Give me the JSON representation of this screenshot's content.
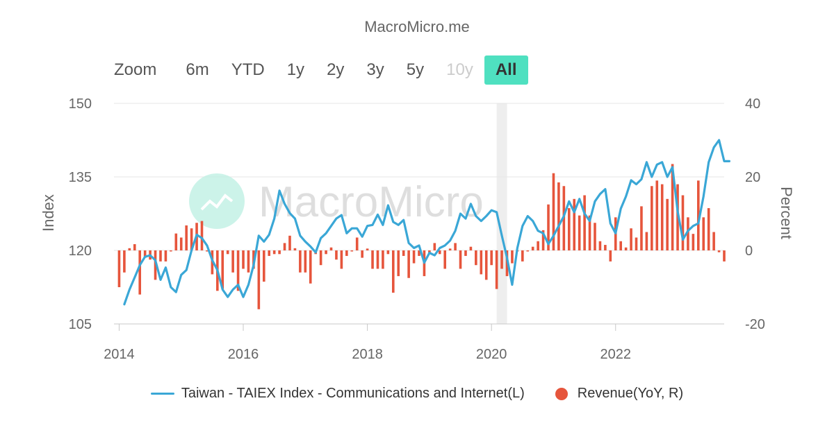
{
  "header": {
    "title": "MacroMicro.me"
  },
  "zoom": {
    "label": "Zoom",
    "buttons": [
      {
        "label": "6m",
        "state": "normal"
      },
      {
        "label": "YTD",
        "state": "normal"
      },
      {
        "label": "1y",
        "state": "normal"
      },
      {
        "label": "2y",
        "state": "normal"
      },
      {
        "label": "3y",
        "state": "normal"
      },
      {
        "label": "5y",
        "state": "normal"
      },
      {
        "label": "10y",
        "state": "disabled"
      },
      {
        "label": "All",
        "state": "active"
      }
    ]
  },
  "watermark": {
    "text": "MacroMicro"
  },
  "colors": {
    "line": "#3aa7d6",
    "bars": "#e6553c",
    "active_button": "#4fe0c0",
    "shade": "#eeeeee"
  },
  "chart_data": {
    "type": "line+bar",
    "x_range": [
      "2013-12",
      "2023-10"
    ],
    "x_ticks": [
      "2014",
      "2016",
      "2018",
      "2020",
      "2022"
    ],
    "left_axis": {
      "label": "Index",
      "min": 105,
      "max": 150,
      "ticks": [
        105,
        120,
        135,
        150
      ]
    },
    "right_axis": {
      "label": "Percent",
      "min": -20,
      "max": 40,
      "ticks": [
        -20,
        0,
        20,
        40
      ]
    },
    "shaded_period": [
      "2020-02",
      "2020-04"
    ],
    "legend_position": "bottom",
    "legend": [
      "Taiwan - TAIEX Index - Communications and Internet(L)",
      "Revenue(YoY, R)"
    ],
    "line_series": {
      "name": "Taiwan - TAIEX Index - Communications and Internet(L)",
      "axis": "left",
      "points": [
        [
          "2014-02",
          109
        ],
        [
          "2014-03",
          112
        ],
        [
          "2014-04",
          114.5
        ],
        [
          "2014-05",
          117
        ],
        [
          "2014-06",
          118.7
        ],
        [
          "2014-07",
          119
        ],
        [
          "2014-08",
          118
        ],
        [
          "2014-09",
          114
        ],
        [
          "2014-10",
          116.5
        ],
        [
          "2014-11",
          112.5
        ],
        [
          "2014-12",
          111.5
        ],
        [
          "2015-01",
          115
        ],
        [
          "2015-02",
          116
        ],
        [
          "2015-03",
          120
        ],
        [
          "2015-04",
          123.2
        ],
        [
          "2015-05",
          122.5
        ],
        [
          "2015-06",
          121
        ],
        [
          "2015-07",
          118
        ],
        [
          "2015-08",
          116
        ],
        [
          "2015-09",
          112
        ],
        [
          "2015-10",
          110.5
        ],
        [
          "2015-11",
          112
        ],
        [
          "2015-12",
          113
        ],
        [
          "2016-01",
          110.5
        ],
        [
          "2016-02",
          113
        ],
        [
          "2016-03",
          117
        ],
        [
          "2016-04",
          123
        ],
        [
          "2016-05",
          121.8
        ],
        [
          "2016-06",
          123.2
        ],
        [
          "2016-07",
          126.5
        ],
        [
          "2016-08",
          132.2
        ],
        [
          "2016-09",
          129.5
        ],
        [
          "2016-10",
          127.6
        ],
        [
          "2016-11",
          126.5
        ],
        [
          "2016-12",
          123
        ],
        [
          "2017-01",
          121.8
        ],
        [
          "2017-02",
          120.8
        ],
        [
          "2017-03",
          119.6
        ],
        [
          "2017-04",
          122.5
        ],
        [
          "2017-05",
          123.5
        ],
        [
          "2017-06",
          125
        ],
        [
          "2017-07",
          126.5
        ],
        [
          "2017-08",
          127.2
        ],
        [
          "2017-09",
          123.5
        ],
        [
          "2017-10",
          124.5
        ],
        [
          "2017-11",
          124.5
        ],
        [
          "2017-12",
          122.8
        ],
        [
          "2018-01",
          125
        ],
        [
          "2018-02",
          125.2
        ],
        [
          "2018-03",
          127.3
        ],
        [
          "2018-04",
          125.2
        ],
        [
          "2018-05",
          129.2
        ],
        [
          "2018-06",
          125.8
        ],
        [
          "2018-07",
          125.2
        ],
        [
          "2018-08",
          126.2
        ],
        [
          "2018-09",
          121.5
        ],
        [
          "2018-10",
          120.5
        ],
        [
          "2018-11",
          121
        ],
        [
          "2018-12",
          117.5
        ],
        [
          "2019-01",
          119.5
        ],
        [
          "2019-02",
          119
        ],
        [
          "2019-03",
          120.5
        ],
        [
          "2019-04",
          121
        ],
        [
          "2019-05",
          122
        ],
        [
          "2019-06",
          124
        ],
        [
          "2019-07",
          127.5
        ],
        [
          "2019-08",
          126.5
        ],
        [
          "2019-09",
          129.5
        ],
        [
          "2019-10",
          127
        ],
        [
          "2019-11",
          126
        ],
        [
          "2019-12",
          127
        ],
        [
          "2020-01",
          128.2
        ],
        [
          "2020-02",
          127.8
        ],
        [
          "2020-03",
          123
        ],
        [
          "2020-04",
          118.5
        ],
        [
          "2020-05",
          113
        ],
        [
          "2020-06",
          120.5
        ],
        [
          "2020-07",
          125
        ],
        [
          "2020-08",
          127
        ],
        [
          "2020-09",
          126
        ],
        [
          "2020-10",
          124
        ],
        [
          "2020-11",
          123.5
        ],
        [
          "2020-12",
          121.3
        ],
        [
          "2021-01",
          123
        ],
        [
          "2021-02",
          125
        ],
        [
          "2021-03",
          127
        ],
        [
          "2021-04",
          130
        ],
        [
          "2021-05",
          127.8
        ],
        [
          "2021-06",
          130.5
        ],
        [
          "2021-07",
          127.5
        ],
        [
          "2021-08",
          126
        ],
        [
          "2021-09",
          130
        ],
        [
          "2021-10",
          131.5
        ],
        [
          "2021-11",
          132.5
        ],
        [
          "2021-12",
          125.5
        ],
        [
          "2022-01",
          123.5
        ],
        [
          "2022-02",
          128.5
        ],
        [
          "2022-03",
          131
        ],
        [
          "2022-04",
          134.3
        ],
        [
          "2022-05",
          133.5
        ],
        [
          "2022-06",
          134.5
        ],
        [
          "2022-07",
          138
        ],
        [
          "2022-08",
          135
        ],
        [
          "2022-09",
          137.5
        ],
        [
          "2022-10",
          138
        ],
        [
          "2022-11",
          135
        ],
        [
          "2022-12",
          137
        ],
        [
          "2023-01",
          128
        ],
        [
          "2023-02",
          122.2
        ],
        [
          "2023-03",
          124
        ],
        [
          "2023-04",
          125
        ],
        [
          "2023-05",
          125.5
        ],
        [
          "2023-06",
          131
        ],
        [
          "2023-07",
          138
        ],
        [
          "2023-08",
          141
        ],
        [
          "2023-09",
          142.5
        ],
        [
          "2023-10",
          138.2
        ],
        [
          "2023-11",
          138.2
        ]
      ]
    },
    "bar_series": {
      "name": "Revenue(YoY, R)",
      "axis": "right",
      "points": [
        [
          "2014-01",
          -10
        ],
        [
          "2014-02",
          -6
        ],
        [
          "2014-03",
          0.6
        ],
        [
          "2014-04",
          1.7
        ],
        [
          "2014-05",
          -12
        ],
        [
          "2014-06",
          -2
        ],
        [
          "2014-07",
          -2.5
        ],
        [
          "2014-08",
          -8
        ],
        [
          "2014-09",
          -3
        ],
        [
          "2014-10",
          -3
        ],
        [
          "2014-11",
          0
        ],
        [
          "2014-12",
          4.6
        ],
        [
          "2015-01",
          3.5
        ],
        [
          "2015-02",
          6.8
        ],
        [
          "2015-03",
          6
        ],
        [
          "2015-04",
          7.5
        ],
        [
          "2015-05",
          8
        ],
        [
          "2015-06",
          0
        ],
        [
          "2015-07",
          -6.5
        ],
        [
          "2015-08",
          -11
        ],
        [
          "2015-09",
          -10.5
        ],
        [
          "2015-10",
          -1
        ],
        [
          "2015-11",
          -6
        ],
        [
          "2015-12",
          -11
        ],
        [
          "2016-01",
          -5
        ],
        [
          "2016-02",
          -6
        ],
        [
          "2016-03",
          -5
        ],
        [
          "2016-04",
          -16
        ],
        [
          "2016-05",
          -8.5
        ],
        [
          "2016-06",
          -1.5
        ],
        [
          "2016-07",
          -1
        ],
        [
          "2016-08",
          -1
        ],
        [
          "2016-09",
          2
        ],
        [
          "2016-10",
          4
        ],
        [
          "2016-11",
          0.6
        ],
        [
          "2016-12",
          -6
        ],
        [
          "2017-01",
          -6
        ],
        [
          "2017-02",
          -9
        ],
        [
          "2017-03",
          -1
        ],
        [
          "2017-04",
          -4
        ],
        [
          "2017-05",
          -1
        ],
        [
          "2017-06",
          0.8
        ],
        [
          "2017-07",
          -2.5
        ],
        [
          "2017-08",
          -5
        ],
        [
          "2017-09",
          -1.5
        ],
        [
          "2017-10",
          0
        ],
        [
          "2017-11",
          3.5
        ],
        [
          "2017-12",
          -2
        ],
        [
          "2018-01",
          0.5
        ],
        [
          "2018-02",
          -5
        ],
        [
          "2018-03",
          -5
        ],
        [
          "2018-04",
          -5
        ],
        [
          "2018-05",
          -1
        ],
        [
          "2018-06",
          -11.5
        ],
        [
          "2018-07",
          -7
        ],
        [
          "2018-08",
          -1.5
        ],
        [
          "2018-09",
          -7.5
        ],
        [
          "2018-10",
          -3.5
        ],
        [
          "2018-11",
          -1.5
        ],
        [
          "2018-12",
          -7
        ],
        [
          "2019-01",
          -1
        ],
        [
          "2019-02",
          2
        ],
        [
          "2019-03",
          -1
        ],
        [
          "2019-04",
          -5
        ],
        [
          "2019-05",
          0.5
        ],
        [
          "2019-06",
          2
        ],
        [
          "2019-07",
          -5
        ],
        [
          "2019-08",
          -1.5
        ],
        [
          "2019-09",
          1
        ],
        [
          "2019-10",
          -4
        ],
        [
          "2019-11",
          -6.5
        ],
        [
          "2019-12",
          -8
        ],
        [
          "2020-01",
          -4
        ],
        [
          "2020-02",
          -10.5
        ],
        [
          "2020-03",
          -5
        ],
        [
          "2020-04",
          -7
        ],
        [
          "2020-05",
          -3.5
        ],
        [
          "2020-06",
          0
        ],
        [
          "2020-07",
          -3
        ],
        [
          "2020-08",
          0
        ],
        [
          "2020-09",
          1
        ],
        [
          "2020-10",
          2.5
        ],
        [
          "2020-11",
          5.5
        ],
        [
          "2020-12",
          12.5
        ],
        [
          "2021-01",
          21
        ],
        [
          "2021-02",
          18.5
        ],
        [
          "2021-03",
          17.5
        ],
        [
          "2021-04",
          11.5
        ],
        [
          "2021-05",
          14
        ],
        [
          "2021-06",
          9.5
        ],
        [
          "2021-07",
          15
        ],
        [
          "2021-08",
          9.5
        ],
        [
          "2021-09",
          7.5
        ],
        [
          "2021-10",
          2.5
        ],
        [
          "2021-11",
          1.5
        ],
        [
          "2021-12",
          -3
        ],
        [
          "2022-01",
          9
        ],
        [
          "2022-02",
          2.5
        ],
        [
          "2022-03",
          0.8
        ],
        [
          "2022-04",
          6
        ],
        [
          "2022-05",
          3.5
        ],
        [
          "2022-06",
          12
        ],
        [
          "2022-07",
          5
        ],
        [
          "2022-08",
          17.5
        ],
        [
          "2022-09",
          19
        ],
        [
          "2022-10",
          18
        ],
        [
          "2022-11",
          14
        ],
        [
          "2022-12",
          23.5
        ],
        [
          "2023-01",
          18
        ],
        [
          "2023-02",
          15
        ],
        [
          "2023-03",
          9
        ],
        [
          "2023-04",
          4.5
        ],
        [
          "2023-05",
          19
        ],
        [
          "2023-06",
          9
        ],
        [
          "2023-07",
          11.5
        ],
        [
          "2023-08",
          5
        ],
        [
          "2023-09",
          -0.5
        ],
        [
          "2023-10",
          -3
        ]
      ]
    }
  }
}
